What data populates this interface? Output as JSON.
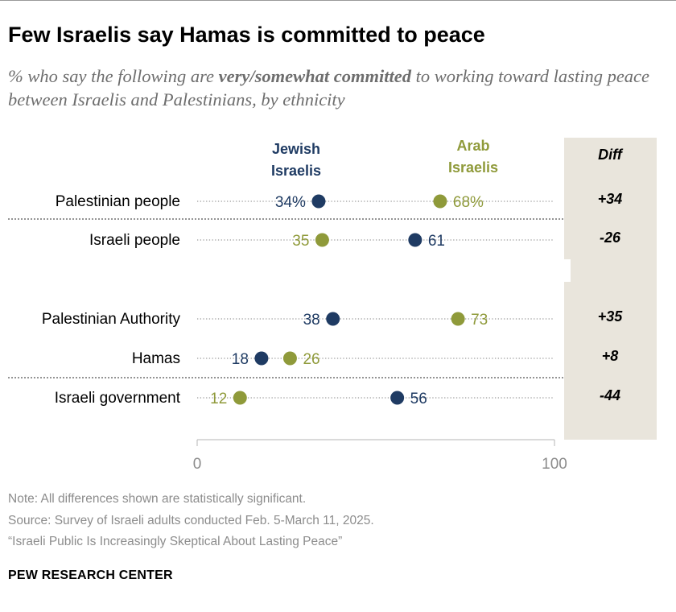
{
  "title": "Few Israelis say Hamas is committed to peace",
  "subtitle": {
    "before": "% who say the following are ",
    "bold": "very/somewhat committed",
    "after": " to working toward lasting peace between Israelis and Palestinians, by ethnicity"
  },
  "chart_data": {
    "type": "dot",
    "series": [
      {
        "name": "Jewish Israelis",
        "label_lines": [
          "Jewish",
          "Israelis"
        ],
        "color": "#1f3b63",
        "values": [
          34,
          61,
          38,
          18,
          56
        ]
      },
      {
        "name": "Arab Israelis",
        "label_lines": [
          "Arab",
          "Israelis"
        ],
        "color": "#8f9a3a",
        "values": [
          68,
          35,
          73,
          26,
          12
        ]
      }
    ],
    "categories": [
      "Palestinian people",
      "Israeli people",
      "Palestinian Authority",
      "Hamas",
      "Israeli government"
    ],
    "value_labels": {
      "Jewish Israelis": [
        "34%",
        "61",
        "38",
        "18",
        "56"
      ],
      "Arab Israelis": [
        "68%",
        "35",
        "73",
        "26",
        "12"
      ]
    },
    "diff_header": "Diff",
    "diffs": [
      "+34",
      "-26",
      "+35",
      "+8",
      "-44"
    ],
    "xlim": [
      0,
      100
    ],
    "axis_tick_labels": [
      "0",
      "100"
    ],
    "grid": false
  },
  "notes": {
    "note": "Note: All differences shown are statistically significant.",
    "source": "Source: Survey of Israeli adults conducted Feb. 5-March 11, 2025.",
    "report": "“Israeli Public Is Increasingly Skeptical About Lasting Peace”"
  },
  "brand": "PEW RESEARCH CENTER"
}
